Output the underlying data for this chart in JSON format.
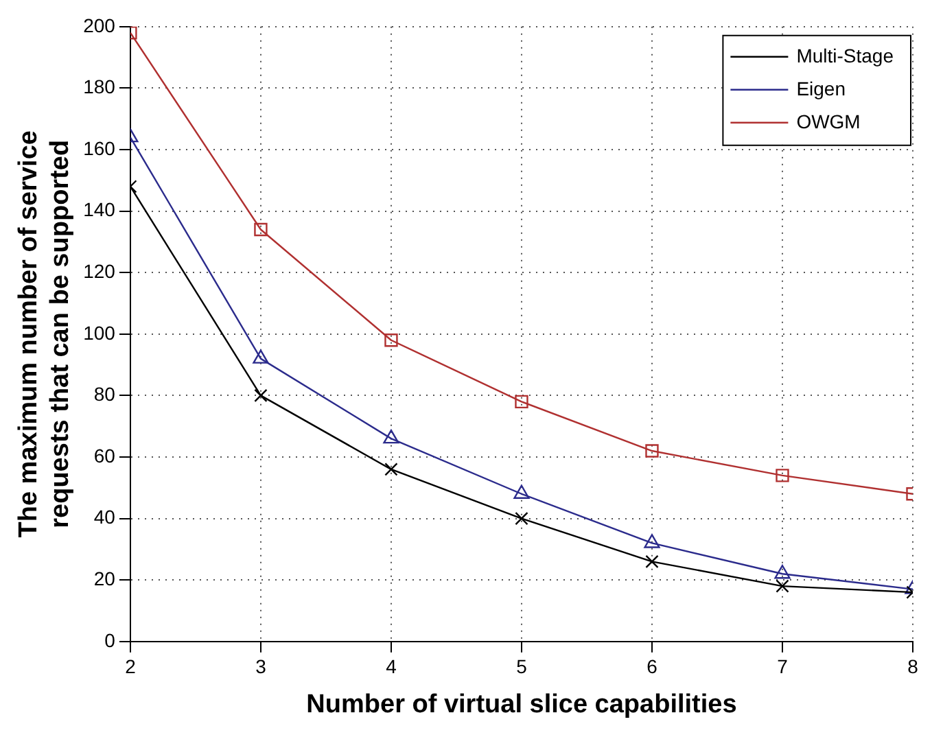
{
  "chart_data": {
    "type": "line",
    "xlabel": "Number of virtual slice capabilities",
    "ylabel": "The maximum number of service requests that can be supported",
    "x": [
      2,
      3,
      4,
      5,
      6,
      7,
      8
    ],
    "series": [
      {
        "name": "Multi-Stage",
        "color": "#000000",
        "marker": "cross",
        "values": [
          148,
          80,
          56,
          40,
          26,
          18,
          16
        ]
      },
      {
        "name": "Eigen",
        "color": "#2b2b8c",
        "marker": "triangle",
        "values": [
          164,
          92,
          66,
          48,
          32,
          22,
          17
        ]
      },
      {
        "name": "OWGM",
        "color": "#b03030",
        "marker": "square",
        "values": [
          198,
          134,
          98,
          78,
          62,
          54,
          48
        ]
      }
    ],
    "xlim": [
      2,
      8
    ],
    "xticks": [
      2,
      3,
      4,
      5,
      6,
      7,
      8
    ],
    "ylim": [
      0,
      200
    ],
    "yticks": [
      0,
      20,
      40,
      60,
      80,
      100,
      120,
      140,
      160,
      180,
      200
    ],
    "grid": true,
    "legend": "top right",
    "line_style": "solid"
  }
}
